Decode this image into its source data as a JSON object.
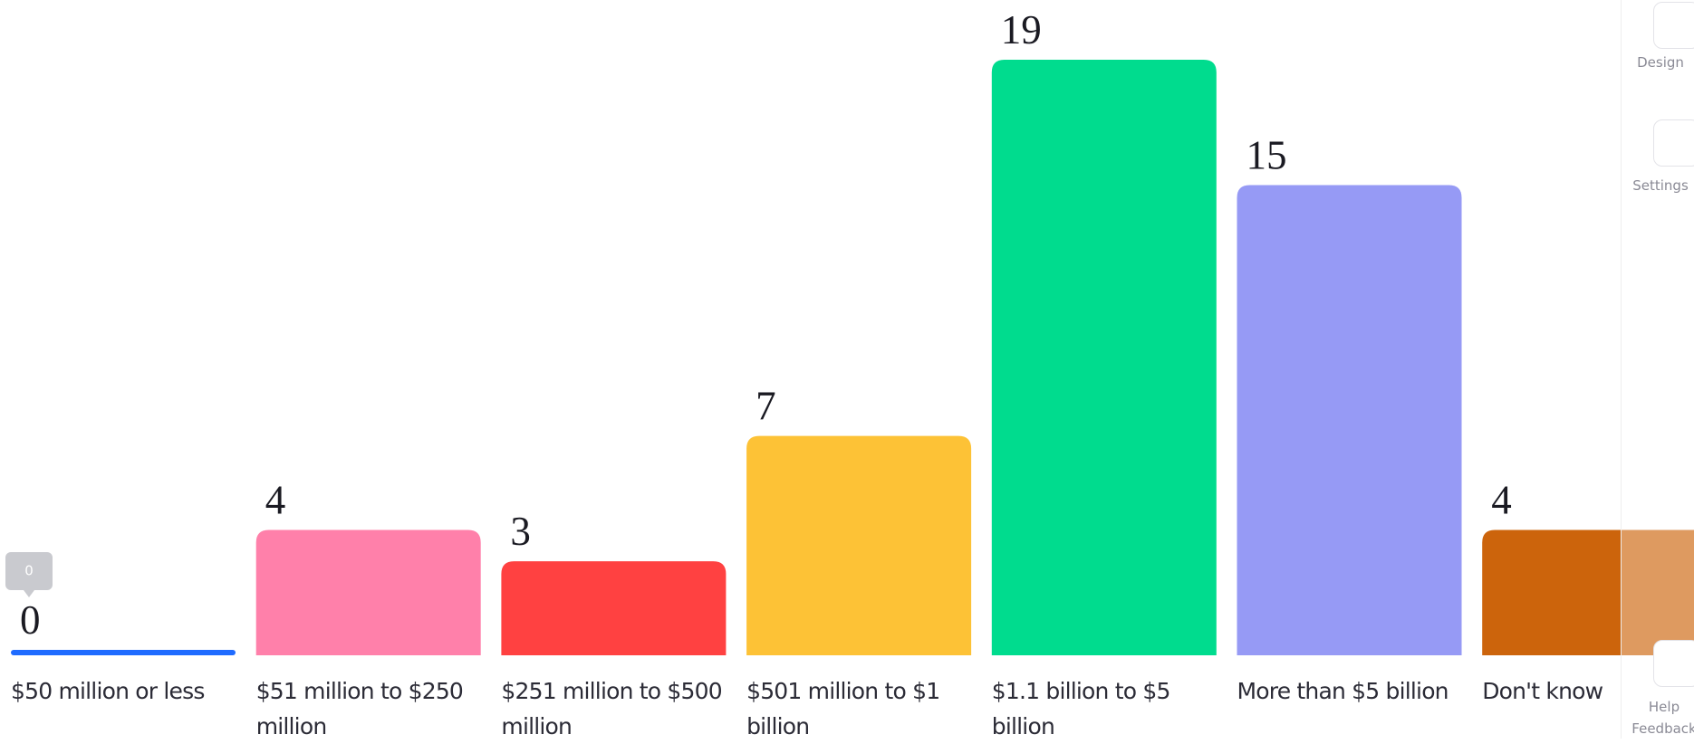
{
  "chart_data": {
    "type": "bar",
    "categories": [
      "$50 million or less",
      "$51 million to $250 million",
      "$251 million to $500 million",
      "$501 million to $1 billion",
      "$1.1 billion to $5 billion",
      "More than $5 billion",
      "Don't know"
    ],
    "values": [
      0,
      4,
      3,
      7,
      19,
      15,
      4
    ],
    "colors": [
      "#1f6bff",
      "#ff80aa",
      "#ff4141",
      "#fdc236",
      "#00dc8e",
      "#969af5",
      "#cc640c"
    ]
  },
  "sidebar": {
    "items": [
      "Design",
      "Settings",
      "Help",
      "Feedback"
    ]
  }
}
